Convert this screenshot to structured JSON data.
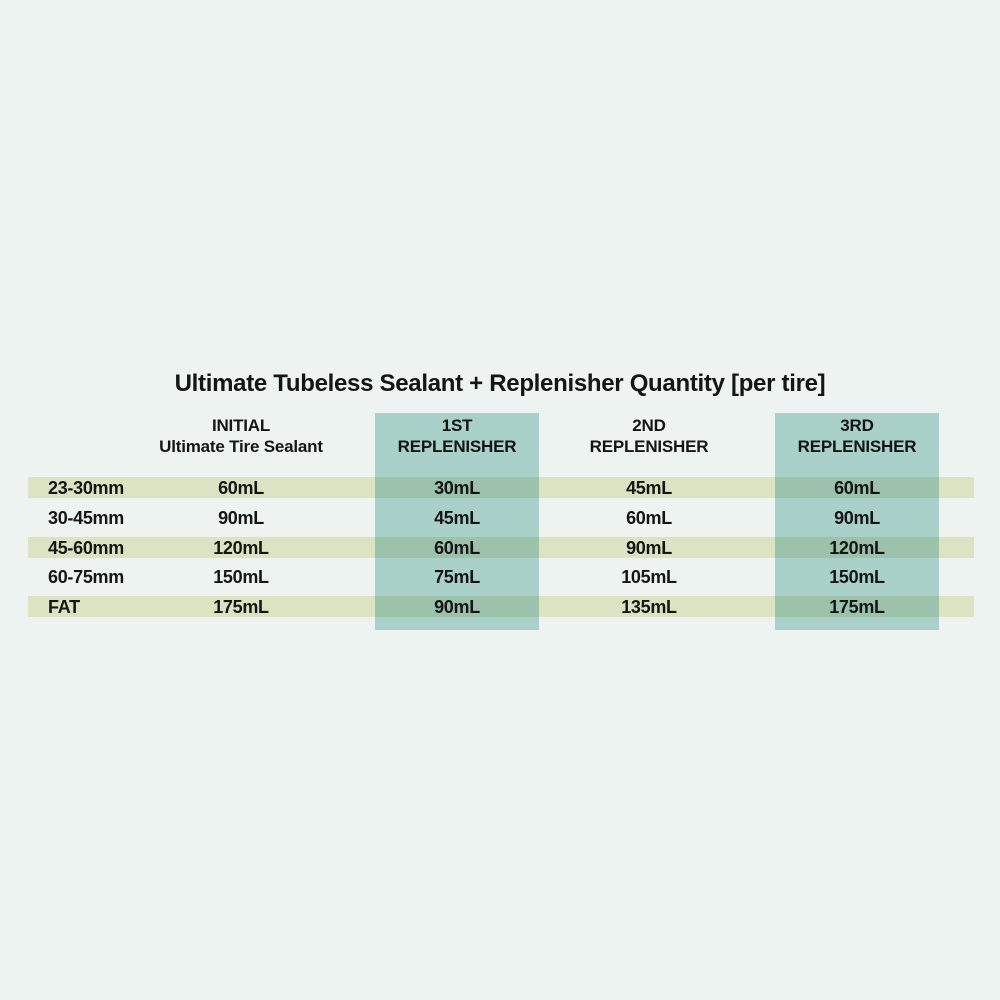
{
  "chart_data": {
    "type": "table",
    "title": "Ultimate Tubeless Sealant + Replenisher Quantity [per tire]",
    "unit": "mL",
    "column_headers": [
      {
        "line1": "INITIAL",
        "line2": "Ultimate Tire Sealant",
        "highlighted": false
      },
      {
        "line1": "1ST",
        "line2": "REPLENISHER",
        "highlighted": true
      },
      {
        "line1": "2ND",
        "line2": "REPLENISHER",
        "highlighted": false
      },
      {
        "line1": "3RD",
        "line2": "REPLENISHER",
        "highlighted": true
      }
    ],
    "rows": [
      {
        "label": "23-30mm",
        "values": [
          "60mL",
          "30mL",
          "45mL",
          "60mL"
        ],
        "striped": true
      },
      {
        "label": "30-45mm",
        "values": [
          "90mL",
          "45mL",
          "60mL",
          "90mL"
        ],
        "striped": false
      },
      {
        "label": "45-60mm",
        "values": [
          "120mL",
          "60mL",
          "90mL",
          "120mL"
        ],
        "striped": true
      },
      {
        "label": "60-75mm",
        "values": [
          "150mL",
          "75mL",
          "105mL",
          "150mL"
        ],
        "striped": false
      },
      {
        "label": "FAT",
        "values": [
          "175mL",
          "90mL",
          "135mL",
          "175mL"
        ],
        "striped": true
      }
    ],
    "layout": {
      "highlighted_columns": [
        "1ST REPLENISHER",
        "3RD REPLENISHER"
      ],
      "striped_rows": [
        "23-30mm",
        "45-60mm",
        "FAT"
      ],
      "grid": false
    },
    "colors": {
      "bg": "#edf3f0",
      "stripe": "#dce3c3",
      "highlight": "#a9d1ca",
      "overlap": "#9cc2ab",
      "text": "#151515"
    }
  }
}
